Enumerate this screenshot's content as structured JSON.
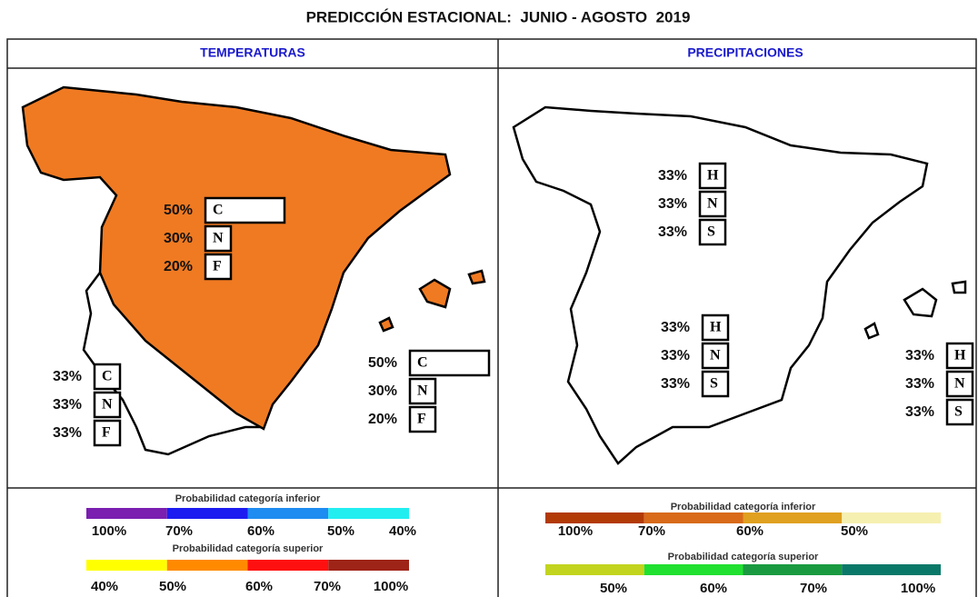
{
  "title": "PREDICCIÓN ESTACIONAL:  JUNIO - AGOSTO  2019",
  "panels": [
    {
      "heading": "TEMPERATURAS",
      "heading_color": "#1a1acc",
      "map_fill": "#f07a22",
      "groups": [
        {
          "items": [
            {
              "value": 50,
              "label": "50%",
              "category": "C"
            },
            {
              "value": 30,
              "label": "30%",
              "category": "N"
            },
            {
              "value": 20,
              "label": "20%",
              "category": "F"
            }
          ]
        },
        {
          "items": [
            {
              "value": 33,
              "label": "33%",
              "category": "C"
            },
            {
              "value": 33,
              "label": "33%",
              "category": "N"
            },
            {
              "value": 33,
              "label": "33%",
              "category": "F"
            }
          ]
        },
        {
          "items": [
            {
              "value": 50,
              "label": "50%",
              "category": "C"
            },
            {
              "value": 30,
              "label": "30%",
              "category": "N"
            },
            {
              "value": 20,
              "label": "20%",
              "category": "F"
            }
          ]
        }
      ],
      "legends": [
        {
          "title": "Probabilidad categoría inferior",
          "colors": [
            "#7a1fb0",
            "#1c1cf0",
            "#1e8cf0",
            "#22eef0"
          ],
          "labels": [
            "100%",
            "70%",
            "60%",
            "50%",
            "40%"
          ]
        },
        {
          "title": "Probabilidad categoría superior",
          "colors": [
            "#ffff00",
            "#ff8a00",
            "#ff1010",
            "#9e2418"
          ],
          "labels": [
            "40%",
            "50%",
            "60%",
            "70%",
            "100%"
          ]
        }
      ]
    },
    {
      "heading": "PRECIPITACIONES",
      "heading_color": "#1a1acc",
      "map_fill": "#ffffff",
      "groups": [
        {
          "items": [
            {
              "value": 33,
              "label": "33%",
              "category": "H"
            },
            {
              "value": 33,
              "label": "33%",
              "category": "N"
            },
            {
              "value": 33,
              "label": "33%",
              "category": "S"
            }
          ]
        },
        {
          "items": [
            {
              "value": 33,
              "label": "33%",
              "category": "H"
            },
            {
              "value": 33,
              "label": "33%",
              "category": "N"
            },
            {
              "value": 33,
              "label": "33%",
              "category": "S"
            }
          ]
        },
        {
          "items": [
            {
              "value": 33,
              "label": "33%",
              "category": "H"
            },
            {
              "value": 33,
              "label": "33%",
              "category": "N"
            },
            {
              "value": 33,
              "label": "33%",
              "category": "S"
            }
          ]
        }
      ],
      "legends": [
        {
          "title": "Probabilidad categoría inferior",
          "colors": [
            "#b23a06",
            "#d86a1a",
            "#e0a020",
            "#f6f0b0"
          ],
          "labels": [
            "100%",
            "70%",
            "60%",
            "50%"
          ]
        },
        {
          "title": "Probabilidad categoría superior",
          "colors": [
            "#c2d41e",
            "#20e030",
            "#1a9a40",
            "#0a7868"
          ],
          "labels": [
            "50%",
            "60%",
            "70%",
            "100%"
          ]
        }
      ]
    }
  ]
}
